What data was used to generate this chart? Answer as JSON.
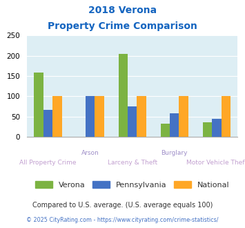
{
  "title_line1": "2018 Verona",
  "title_line2": "Property Crime Comparison",
  "categories": [
    "All Property Crime",
    "Arson",
    "Larceny & Theft",
    "Burglary",
    "Motor Vehicle Theft"
  ],
  "verona": [
    158,
    0,
    205,
    32,
    36
  ],
  "pennsylvania": [
    67,
    100,
    75,
    58,
    45
  ],
  "national": [
    100,
    100,
    100,
    100,
    100
  ],
  "verona_color": "#7CB342",
  "pennsylvania_color": "#4472C4",
  "national_color": "#FFA726",
  "ylim": [
    0,
    250
  ],
  "yticks": [
    0,
    50,
    100,
    150,
    200,
    250
  ],
  "plot_bg": "#ddeef4",
  "title_color": "#1565C0",
  "upper_xlabel_color": "#9E8EC8",
  "lower_xlabel_color": "#C2A0D0",
  "footnote1": "Compared to U.S. average. (U.S. average equals 100)",
  "footnote2": "© 2025 CityRating.com - https://www.cityrating.com/crime-statistics/",
  "footnote1_color": "#333333",
  "footnote2_color": "#4472C4",
  "legend_labels": [
    "Verona",
    "Pennsylvania",
    "National"
  ],
  "legend_text_color": "#333333",
  "bar_width": 0.22
}
